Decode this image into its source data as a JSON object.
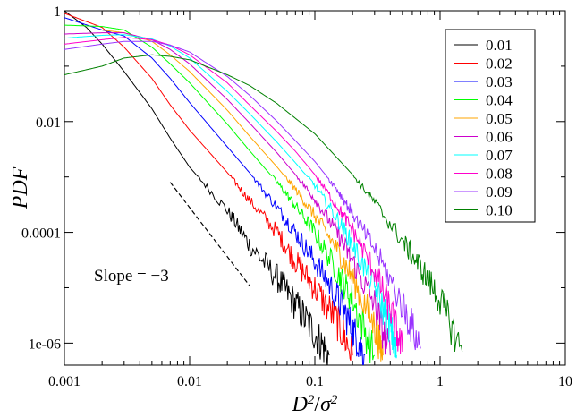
{
  "chart_data": {
    "type": "line",
    "title": "",
    "xlabel": "D²/σ²",
    "ylabel": "PDF",
    "xscale": "log",
    "yscale": "log",
    "xlim": [
      0.001,
      10
    ],
    "ylim": [
      4e-07,
      1
    ],
    "grid": false,
    "legend_position": "top-right",
    "x_ticks": [
      "0.001",
      "0.01",
      "0.1",
      "1",
      "10"
    ],
    "y_ticks": [
      "1",
      "0.01",
      "0.0001",
      "1e-06"
    ],
    "annotation": {
      "text": "Slope = −3",
      "line": {
        "x": [
          0.007,
          0.03
        ],
        "y": [
          0.0008,
          1.1e-05
        ]
      }
    },
    "series": [
      {
        "name": "0.01",
        "color": "#000000",
        "x": [
          0.001,
          0.0015,
          0.002,
          0.003,
          0.005,
          0.007,
          0.01,
          0.02,
          0.03,
          0.05,
          0.07,
          0.1,
          0.13
        ],
        "y": [
          1.0,
          0.5,
          0.25,
          0.08,
          0.017,
          0.005,
          0.0015,
          0.00025,
          6e-05,
          1.5e-05,
          5e-06,
          1.5e-06,
          6e-07
        ]
      },
      {
        "name": "0.02",
        "color": "#ff0000",
        "x": [
          0.001,
          0.002,
          0.003,
          0.005,
          0.007,
          0.01,
          0.02,
          0.03,
          0.05,
          0.07,
          0.1,
          0.15,
          0.2
        ],
        "y": [
          0.9,
          0.5,
          0.22,
          0.06,
          0.02,
          0.007,
          0.0012,
          0.00038,
          0.0001,
          3e-05,
          1e-05,
          2.5e-06,
          6e-07
        ]
      },
      {
        "name": "0.03",
        "color": "#0000ff",
        "x": [
          0.001,
          0.002,
          0.003,
          0.005,
          0.007,
          0.01,
          0.02,
          0.03,
          0.05,
          0.07,
          0.1,
          0.15,
          0.2,
          0.25
        ],
        "y": [
          0.75,
          0.45,
          0.35,
          0.14,
          0.06,
          0.022,
          0.0035,
          0.0012,
          0.00028,
          0.0001,
          3e-05,
          7e-06,
          1.8e-06,
          6e-07
        ]
      },
      {
        "name": "0.04",
        "color": "#00ff00",
        "x": [
          0.001,
          0.002,
          0.003,
          0.005,
          0.007,
          0.01,
          0.02,
          0.03,
          0.05,
          0.07,
          0.1,
          0.15,
          0.2,
          0.3
        ],
        "y": [
          0.55,
          0.52,
          0.45,
          0.22,
          0.11,
          0.05,
          0.009,
          0.003,
          0.0008,
          0.0003,
          0.0001,
          2e-05,
          6e-06,
          6e-07
        ]
      },
      {
        "name": "0.05",
        "color": "#ffa500",
        "x": [
          0.001,
          0.002,
          0.003,
          0.005,
          0.007,
          0.01,
          0.02,
          0.03,
          0.05,
          0.07,
          0.1,
          0.15,
          0.2,
          0.3,
          0.35
        ],
        "y": [
          0.45,
          0.45,
          0.4,
          0.28,
          0.16,
          0.08,
          0.016,
          0.0055,
          0.0015,
          0.0006,
          0.0002,
          5e-05,
          1.5e-05,
          2e-06,
          6e-07
        ]
      },
      {
        "name": "0.06",
        "color": "#cc00cc",
        "x": [
          0.001,
          0.002,
          0.003,
          0.005,
          0.007,
          0.01,
          0.02,
          0.03,
          0.05,
          0.07,
          0.1,
          0.15,
          0.2,
          0.3,
          0.4
        ],
        "y": [
          0.38,
          0.4,
          0.4,
          0.3,
          0.2,
          0.11,
          0.025,
          0.0095,
          0.0027,
          0.0011,
          0.0004,
          0.0001,
          3e-05,
          5e-06,
          6e-07
        ]
      },
      {
        "name": "0.07",
        "color": "#00ffff",
        "x": [
          0.001,
          0.002,
          0.003,
          0.005,
          0.007,
          0.01,
          0.02,
          0.03,
          0.05,
          0.07,
          0.1,
          0.15,
          0.2,
          0.3,
          0.4,
          0.45
        ],
        "y": [
          0.32,
          0.36,
          0.37,
          0.31,
          0.23,
          0.14,
          0.035,
          0.014,
          0.0042,
          0.0018,
          0.0007,
          0.00018,
          6e-05,
          1e-05,
          2e-06,
          6e-07
        ]
      },
      {
        "name": "0.08",
        "color": "#ff00cc",
        "x": [
          0.001,
          0.002,
          0.003,
          0.005,
          0.007,
          0.01,
          0.02,
          0.03,
          0.05,
          0.07,
          0.1,
          0.15,
          0.2,
          0.3,
          0.4,
          0.5
        ],
        "y": [
          0.25,
          0.3,
          0.33,
          0.3,
          0.24,
          0.16,
          0.05,
          0.02,
          0.0065,
          0.0029,
          0.0011,
          0.0003,
          0.00011,
          2e-05,
          4e-06,
          7e-07
        ]
      },
      {
        "name": "0.09",
        "color": "#9933ff",
        "x": [
          0.001,
          0.002,
          0.003,
          0.005,
          0.007,
          0.01,
          0.02,
          0.03,
          0.05,
          0.07,
          0.1,
          0.15,
          0.2,
          0.3,
          0.5,
          0.7
        ],
        "y": [
          0.2,
          0.25,
          0.28,
          0.28,
          0.24,
          0.18,
          0.065,
          0.03,
          0.01,
          0.0045,
          0.0019,
          0.0006,
          0.00022,
          5e-05,
          5e-06,
          8e-07
        ]
      },
      {
        "name": "0.10",
        "color": "#008000",
        "x": [
          0.001,
          0.002,
          0.003,
          0.005,
          0.007,
          0.01,
          0.02,
          0.03,
          0.05,
          0.1,
          0.2,
          0.3,
          0.5,
          0.7,
          1.0,
          1.5
        ],
        "y": [
          0.07,
          0.1,
          0.14,
          0.16,
          0.15,
          0.13,
          0.07,
          0.045,
          0.021,
          0.006,
          0.0011,
          0.00035,
          7e-05,
          2.3e-05,
          6e-06,
          7e-07
        ]
      }
    ]
  }
}
